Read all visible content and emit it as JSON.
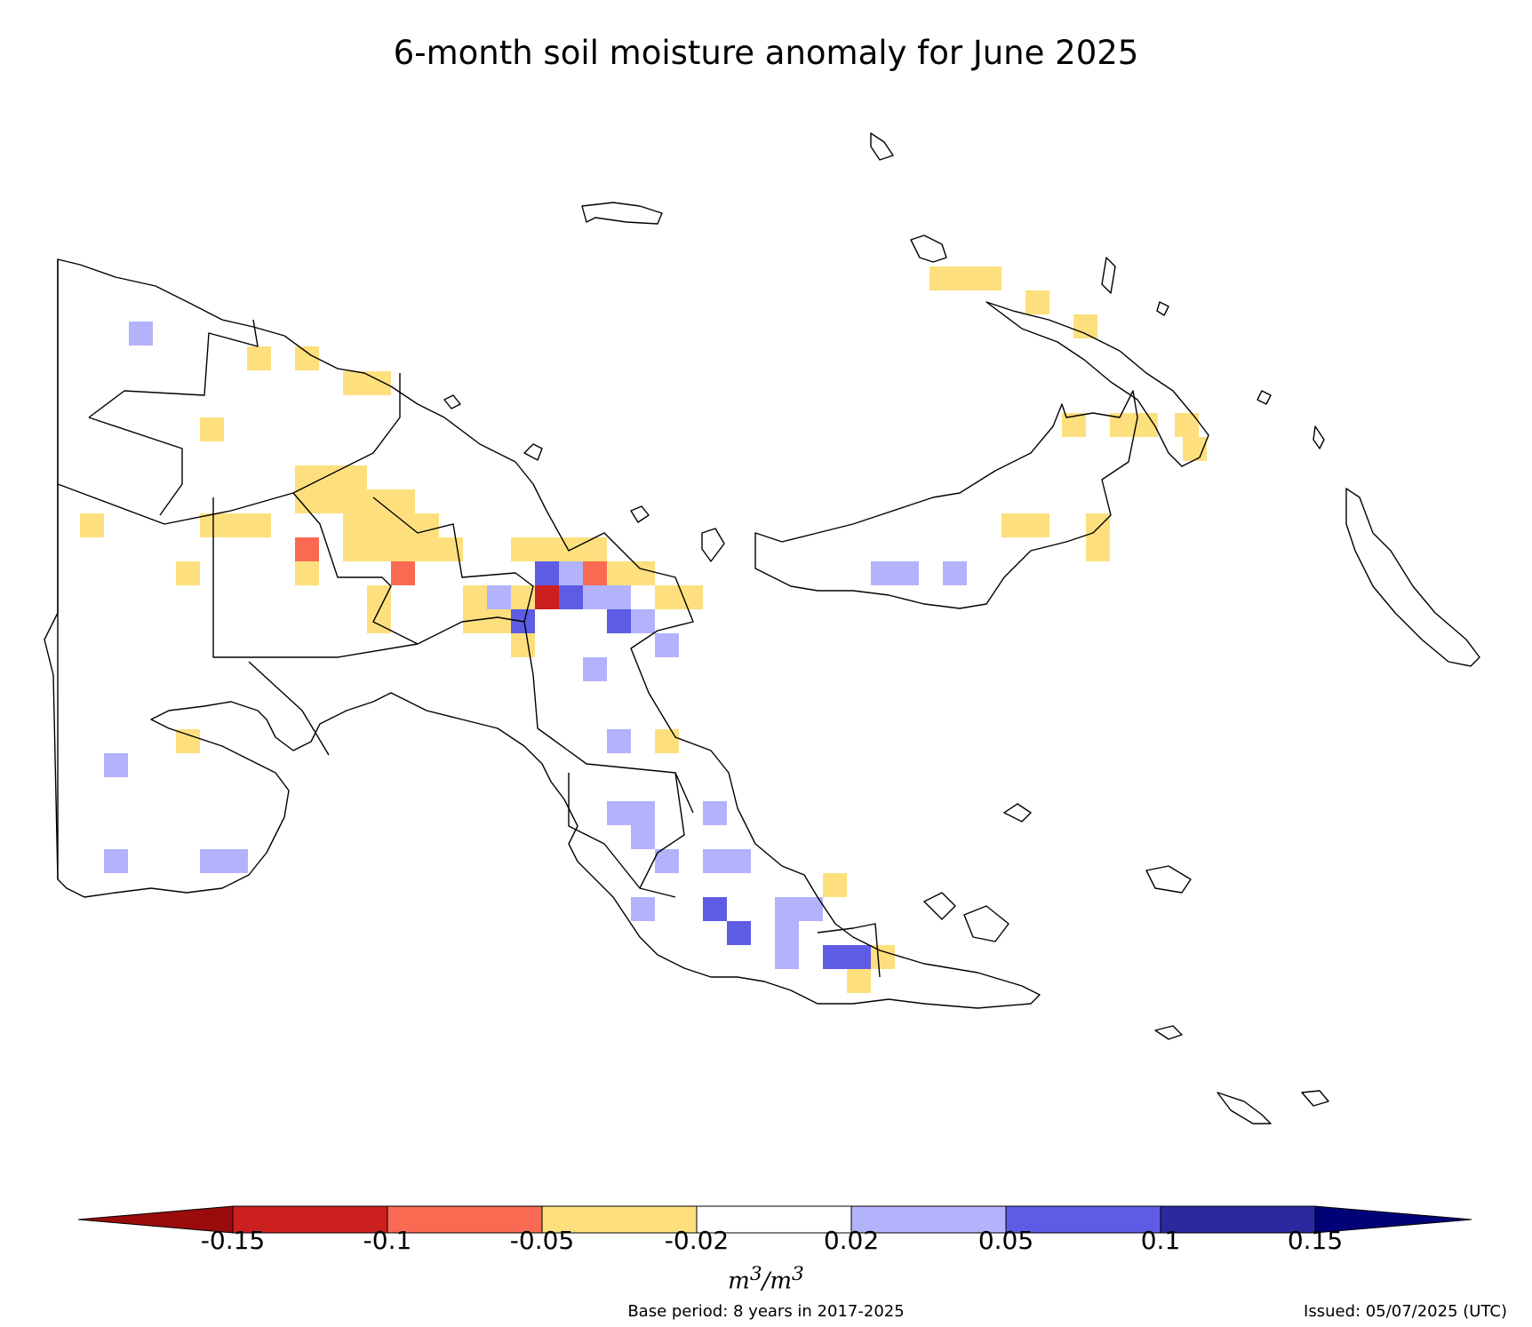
{
  "title": "6-month soil moisture anomaly for June 2025",
  "colorbar": {
    "ticks": [
      "-0.15",
      "-0.1",
      "-0.05",
      "-0.02",
      "0.02",
      "0.05",
      "0.1",
      "0.15"
    ],
    "unit_base": "m",
    "unit_exp": "3",
    "unit_sep": "/",
    "bins": [
      {
        "range": "< -0.15",
        "color": "#9b0b0b"
      },
      {
        "range": "-0.15 to -0.1",
        "color": "#cc1f1f"
      },
      {
        "range": "-0.1 to -0.05",
        "color": "#fa6a52"
      },
      {
        "range": "-0.05 to -0.02",
        "color": "#fde07d"
      },
      {
        "range": "-0.02 to 0.02",
        "color": "#ffffff"
      },
      {
        "range": "0.02 to 0.05",
        "color": "#b3b3fb"
      },
      {
        "range": "0.05 to 0.1",
        "color": "#5e5ce4"
      },
      {
        "range": "0.1 to 0.15",
        "color": "#2a2a9e"
      },
      {
        "range": "> 0.15",
        "color": "#020278"
      }
    ]
  },
  "footer": {
    "base_period": "Base period: 8 years in 2017-2025",
    "issued": "Issued: 05/07/2025 (UTC)"
  }
}
